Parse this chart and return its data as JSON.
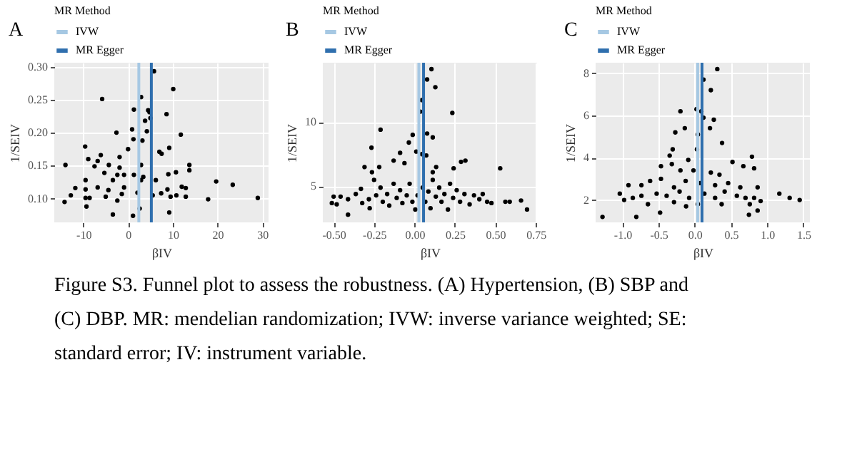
{
  "chart_data": [
    {
      "type": "scatter",
      "title": "A",
      "xlabel": "βIV",
      "ylabel": "1/SEIV",
      "legend_title": "MR Method",
      "legend": "top",
      "grid": true,
      "marker": "circle",
      "xlim": [
        -16.5,
        31.4
      ],
      "ylim": [
        0.064,
        0.306
      ],
      "xticks": [
        -10,
        0,
        10,
        20,
        30
      ],
      "yticks": [
        {
          "value": 0.1,
          "label": "0.10"
        },
        0.15,
        {
          "value": 0.2,
          "label": "0.20"
        },
        0.25,
        {
          "value": 0.3,
          "label": "0.30"
        }
      ],
      "ref_lines": [
        {
          "axis": "x",
          "value": 2.4,
          "label": "IVW",
          "color": "#a6c8e3"
        },
        {
          "axis": "x",
          "value": 5.2,
          "label": "MR Egger",
          "color": "#2f6fae"
        }
      ],
      "series": [
        {
          "color": "#000000",
          "x": [
            5.8,
            10.1,
            -5.8,
            2.9,
            1.3,
            4.5,
            4.8,
            8.6,
            5.0,
            3.8,
            11.8,
            -2.6,
            4.2,
            0.9,
            1.2,
            3.2,
            0,
            9.2,
            -9.6,
            7.0,
            7.5,
            -6.1,
            -8.9,
            -1.9,
            -14,
            -6.8,
            -4.3,
            2.9,
            13.7,
            13.7,
            10.7,
            9.0,
            -7.5,
            -1.9,
            -5.3,
            -2.4,
            -0.9,
            1.3,
            3.4,
            -9.5,
            -3.4,
            2.9,
            6.2,
            19.7,
            23.4,
            -11.8,
            -9.5,
            -6.8,
            -4.4,
            -0.9,
            12,
            12.9,
            8.8,
            -12.8,
            -9.5,
            -8.6,
            -5,
            -1.4,
            2.1,
            5.5,
            7.4,
            9.5,
            10.8,
            12.9,
            17.9,
            29,
            -14.2,
            -2.4,
            -9.3,
            2.6,
            -3.4,
            1.1,
            9.2
          ],
          "values": [
            0.293,
            0.266,
            0.251,
            0.254,
            0.235,
            0.234,
            0.231,
            0.228,
            0.222,
            0.218,
            0.197,
            0.2,
            0.202,
            0.205,
            0.19,
            0.188,
            0.175,
            0.177,
            0.179,
            0.171,
            0.168,
            0.166,
            0.16,
            0.163,
            0.151,
            0.157,
            0.151,
            0.151,
            0.151,
            0.143,
            0.14,
            0.137,
            0.149,
            0.147,
            0.139,
            0.136,
            0.136,
            0.136,
            0.133,
            0.128,
            0.128,
            0.128,
            0.128,
            0.126,
            0.121,
            0.116,
            0.114,
            0.117,
            0.113,
            0.117,
            0.118,
            0.116,
            0.114,
            0.105,
            0.101,
            0.101,
            0.103,
            0.107,
            0.109,
            0.105,
            0.108,
            0.103,
            0.105,
            0.103,
            0.099,
            0.101,
            0.095,
            0.097,
            0.088,
            0.085,
            0.076,
            0.074,
            0.079
          ]
        }
      ],
      "annotations": [
        "Figure S3. Funnel plot to assess the robustness. (A) Hypertension, (B) SBP and (C) DBP. MR: mendelian randomization; IVW: inverse variance weighted; SE: standard error; IV: instrument variable."
      ]
    },
    {
      "type": "scatter",
      "title": "B",
      "xlabel": "βIV",
      "ylabel": "1/SEIV",
      "legend_title": "MR Method",
      "legend": "top",
      "grid": true,
      "marker": "circle",
      "xlim": [
        -0.567,
        0.758
      ],
      "ylim": [
        2.2,
        14.6
      ],
      "xticks": [
        {
          "value": -0.5,
          "label": "-0.50"
        },
        -0.25,
        {
          "value": 0,
          "label": "0.00"
        },
        0.25,
        {
          "value": 0.5,
          "label": "0.50"
        },
        0.75
      ],
      "yticks": [
        5,
        10
      ],
      "ref_lines": [
        {
          "axis": "x",
          "value": 0.027,
          "label": "IVW",
          "color": "#a6c8e3"
        },
        {
          "axis": "x",
          "value": 0.056,
          "label": "MR Egger",
          "color": "#2f6fae"
        }
      ],
      "series": [
        {
          "color": "#000000",
          "x": [
            0.105,
            0.078,
            0.129,
            0.046,
            0.035,
            0.234,
            -0.21,
            0.078,
            -0.011,
            0.113,
            -0.035,
            -0.266,
            0.011,
            -0.089,
            0.046,
            0.073,
            -0.129,
            0.288,
            0.315,
            -0.062,
            -0.309,
            0.53,
            -0.218,
            0.134,
            0.242,
            0.113,
            -0.5,
            -0.457,
            -0.411,
            -0.511,
            -0.481,
            -0.411,
            -0.363,
            -0.331,
            -0.323,
            -0.282,
            -0.277,
            -0.25,
            -0.237,
            -0.21,
            -0.196,
            -0.169,
            -0.156,
            -0.129,
            -0.11,
            -0.089,
            -0.075,
            -0.048,
            -0.03,
            -0.013,
            0.005,
            0.019,
            0.051,
            0.067,
            0.086,
            0.099,
            0.113,
            0.132,
            0.153,
            0.167,
            0.185,
            0.207,
            0.22,
            0.239,
            0.261,
            0.282,
            0.309,
            0.341,
            0.368,
            0.401,
            0.422,
            0.449,
            0.476,
            0.562,
            0.589,
            0.659,
            0.696,
            -0.263
          ],
          "values": [
            14.1,
            13.3,
            12.7,
            11.7,
            10.8,
            10.7,
            9.4,
            9.1,
            9.0,
            8.8,
            8.4,
            8.0,
            7.7,
            7.6,
            7.5,
            7.4,
            7.0,
            6.9,
            7.0,
            6.8,
            6.5,
            6.4,
            6.5,
            6.5,
            6.4,
            6.1,
            4.2,
            4.2,
            4.0,
            3.7,
            3.6,
            2.8,
            4.4,
            4.8,
            3.7,
            4.0,
            3.3,
            5.5,
            4.3,
            4.9,
            3.8,
            4.4,
            3.5,
            5.2,
            4.1,
            4.7,
            3.7,
            4.3,
            5.2,
            3.8,
            3.2,
            4.3,
            4.9,
            3.8,
            4.6,
            3.3,
            5.5,
            4.2,
            4.9,
            3.8,
            4.4,
            3.2,
            5.2,
            4.1,
            4.7,
            3.8,
            4.4,
            3.6,
            4.3,
            4.0,
            4.4,
            3.8,
            3.7,
            3.8,
            3.8,
            3.9,
            3.2,
            6.1
          ]
        }
      ]
    },
    {
      "type": "scatter",
      "title": "C",
      "xlabel": "βIV",
      "ylabel": "1/SEIV",
      "legend_title": "MR Method",
      "legend": "top",
      "grid": true,
      "marker": "circle",
      "xlim": [
        -1.37,
        1.59
      ],
      "ylim": [
        0.94,
        8.5
      ],
      "xticks": [
        {
          "value": -1,
          "label": "-1.0"
        },
        -0.5,
        {
          "value": 0,
          "label": "0.0"
        },
        0.5,
        {
          "value": 1,
          "label": "1.0"
        },
        1.5
      ],
      "yticks": [
        2,
        4,
        6,
        8
      ],
      "ref_lines": [
        {
          "axis": "x",
          "value": 0.04,
          "label": "IVW",
          "color": "#a6c8e3"
        },
        {
          "axis": "x",
          "value": 0.1,
          "label": "MR Egger",
          "color": "#2f6fae"
        }
      ],
      "series": [
        {
          "color": "#000000",
          "x": [
            0.311,
            0.12,
            0.222,
            -0.198,
            0.024,
            0.09,
            0.12,
            0.263,
            -0.138,
            0.21,
            -0.269,
            0.377,
            0.042,
            -0.305,
            0.03,
            -0.347,
            0.79,
            -0.09,
            -0.317,
            -0.467,
            0.521,
            0.82,
            0.671,
            -0.198,
            -0.018,
            0.222,
            0.341,
            -0.617,
            -0.916,
            -0.737,
            -0.467,
            -0.287,
            -0.126,
            0.072,
            0.281,
            0.461,
            0.629,
            0.868,
            -1.036,
            -0.856,
            -0.737,
            -0.527,
            -0.389,
            -0.21,
            -0.078,
            0.132,
            0.281,
            0.413,
            0.581,
            0.701,
            0.82,
            0.91,
            -0.976,
            -0.647,
            -0.287,
            0.042,
            0.371,
            0.76,
            1.168,
            1.311,
            1.449,
            -0.808,
            -1.275,
            -0.479,
            0.748,
            0.868,
            -0.12
          ],
          "values": [
            8.2,
            7.7,
            7.2,
            6.2,
            6.3,
            6.2,
            5.9,
            5.8,
            5.4,
            5.4,
            5.2,
            4.7,
            5.1,
            4.4,
            4.4,
            4.1,
            4.05,
            3.9,
            3.7,
            3.6,
            3.8,
            3.5,
            3.6,
            3.4,
            3.4,
            3.3,
            3.2,
            2.9,
            2.7,
            2.7,
            3.0,
            2.6,
            2.9,
            2.8,
            2.7,
            2.8,
            2.6,
            2.6,
            2.3,
            2.1,
            2.2,
            2.3,
            2.2,
            2.4,
            2.1,
            2.3,
            2.1,
            2.4,
            2.2,
            2.1,
            2.1,
            1.95,
            2.0,
            1.8,
            1.9,
            1.8,
            1.8,
            1.8,
            2.3,
            2.1,
            2.0,
            1.2,
            1.2,
            1.4,
            1.3,
            1.5,
            1.7
          ]
        }
      ]
    }
  ]
}
